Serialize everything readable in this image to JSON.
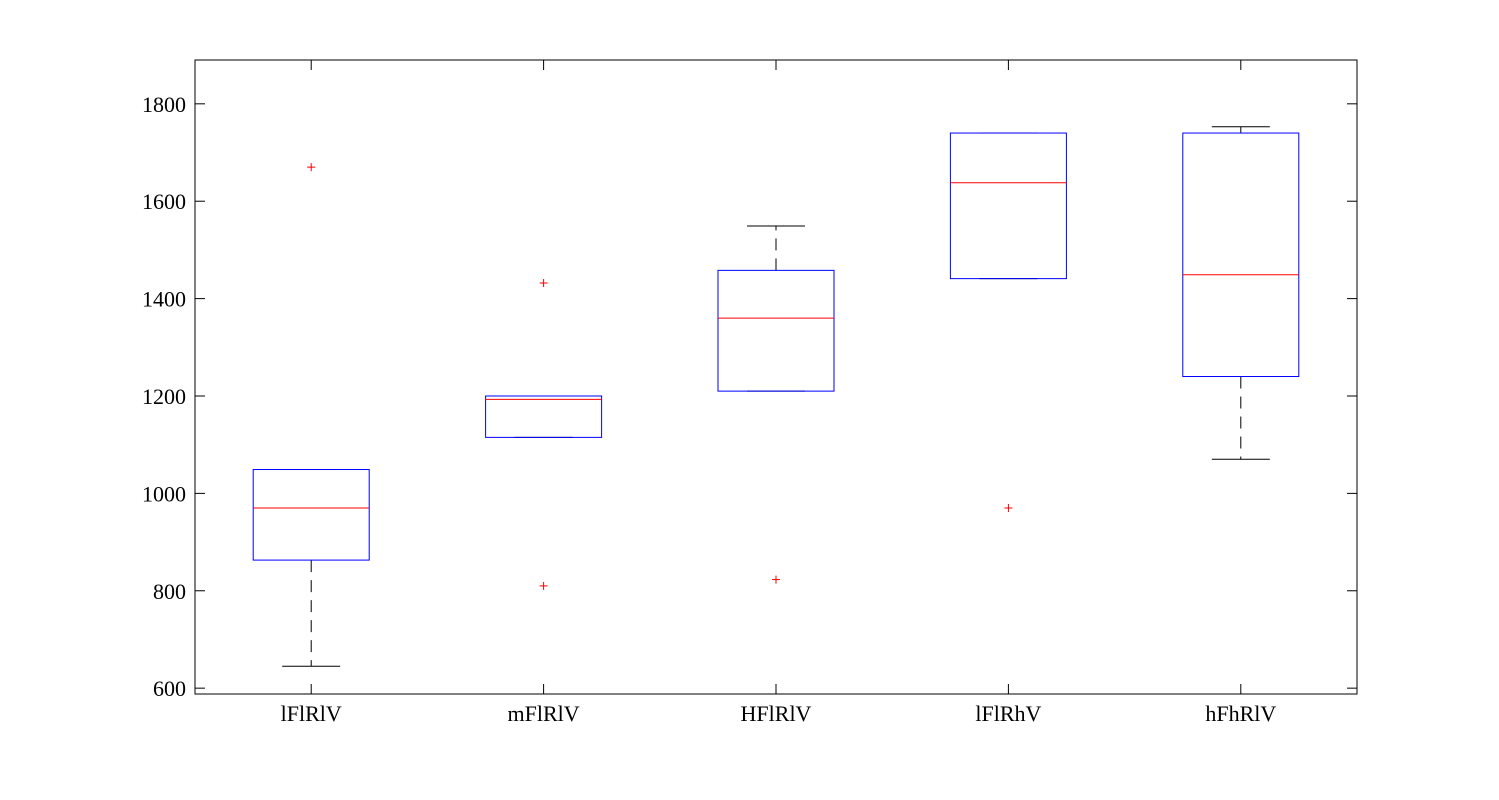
{
  "chart_data": {
    "type": "box",
    "title": "",
    "xlabel": "",
    "ylabel": "",
    "ylim": [
      588,
      1890
    ],
    "yticks": [
      600,
      800,
      1000,
      1200,
      1400,
      1600,
      1800
    ],
    "grid": false,
    "colors": {
      "box": "#0000ff",
      "median": "#ff0000",
      "whisker": "#000000",
      "outlier": "#ff0000",
      "axis": "#000000"
    },
    "categories": [
      "lFlRlV",
      "mFlRlV",
      "HFlRlV",
      "lFlRhV",
      "hFhRlV"
    ],
    "boxes": [
      {
        "whisker_low": 645,
        "q1": 863,
        "median": 970,
        "q3": 1049,
        "whisker_high": 1049,
        "outliers": [
          1670
        ]
      },
      {
        "whisker_low": 1115,
        "q1": 1115,
        "median": 1193,
        "q3": 1200,
        "whisker_high": 1200,
        "outliers": [
          1432,
          810
        ]
      },
      {
        "whisker_low": 1210,
        "q1": 1210,
        "median": 1360,
        "q3": 1458,
        "whisker_high": 1549,
        "outliers": [
          823
        ]
      },
      {
        "whisker_low": 1441,
        "q1": 1441,
        "median": 1638,
        "q3": 1740,
        "whisker_high": 1740,
        "outliers": [
          970
        ]
      },
      {
        "whisker_low": 1070,
        "q1": 1240,
        "median": 1449,
        "q3": 1740,
        "whisker_high": 1753,
        "outliers": []
      }
    ]
  }
}
